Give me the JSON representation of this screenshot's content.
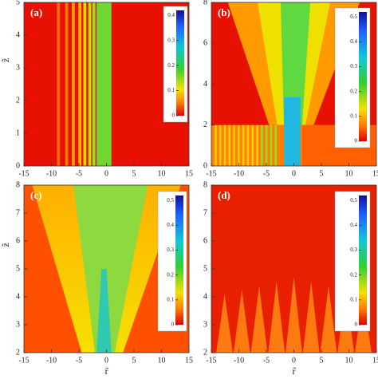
{
  "chart_data": [
    {
      "type": "heatmap",
      "panel_label": "(a)",
      "y_label": "z̃",
      "xlim": [
        -15,
        15
      ],
      "xticks": [
        -15,
        -10,
        -5,
        0,
        5,
        10,
        15
      ],
      "ylim": [
        0,
        5
      ],
      "yticks": [
        0,
        1,
        2,
        3,
        4,
        5
      ],
      "colorbar": {
        "lim": [
          0,
          0.42
        ],
        "ticks": [
          0,
          0.1,
          0.2,
          0.3,
          0.4
        ]
      }
    },
    {
      "type": "heatmap",
      "panel_label": "(b)",
      "xlim": [
        -15,
        15
      ],
      "xticks": [
        -15,
        -10,
        -5,
        0,
        5,
        10,
        15
      ],
      "ylim": [
        0,
        8
      ],
      "yticks": [
        0,
        2,
        4,
        6,
        8
      ],
      "colorbar": {
        "lim": [
          0,
          0.52
        ],
        "ticks": [
          0,
          0.1,
          0.2,
          0.3,
          0.4,
          0.5
        ]
      }
    },
    {
      "type": "heatmap",
      "panel_label": "(c)",
      "y_label": "z̃",
      "x_label": "r̃",
      "xlim": [
        -15,
        15
      ],
      "xticks": [
        -15,
        -10,
        -5,
        0,
        5,
        10,
        15
      ],
      "ylim": [
        2,
        8
      ],
      "yticks": [
        2,
        3,
        4,
        5,
        6,
        7,
        8
      ],
      "colorbar": {
        "lim": [
          0,
          0.52
        ],
        "ticks": [
          0,
          0.1,
          0.2,
          0.3,
          0.4,
          0.5
        ]
      }
    },
    {
      "type": "heatmap",
      "panel_label": "(d)",
      "x_label": "r̃",
      "xlim": [
        -15,
        15
      ],
      "xticks": [
        -15,
        -10,
        -5,
        0,
        5,
        10,
        15
      ],
      "ylim": [
        2,
        8
      ],
      "yticks": [
        2,
        3,
        4,
        5,
        6,
        7,
        8
      ],
      "colorbar": {
        "lim": [
          0,
          0.52
        ],
        "ticks": [
          0,
          0.1,
          0.2,
          0.3,
          0.4,
          0.5
        ]
      }
    }
  ]
}
